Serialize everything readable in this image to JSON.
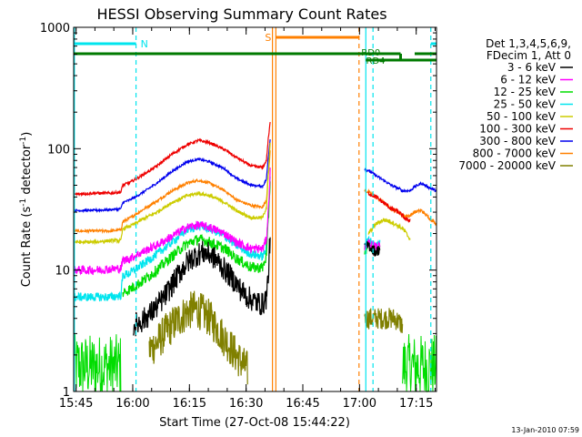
{
  "chart_data": {
    "type": "line",
    "title": "HESSI Observing Summary Count Rates",
    "xlabel": "Start Time (27-Oct-08 15:44:22)",
    "ylabel_main": "Count Rate (s",
    "ylabel_sup1": "-1",
    "ylabel_mid": " detector",
    "ylabel_sup2": "-1",
    "ylabel_end": ")",
    "footer": "13-Jan-2010 07:59",
    "yscale": "log",
    "ylim": [
      1,
      1000
    ],
    "xlim_minutes": [
      0,
      96
    ],
    "x_ticks": [
      {
        "m": 0.63,
        "label": "15:45"
      },
      {
        "m": 15.63,
        "label": "16:00"
      },
      {
        "m": 30.63,
        "label": "16:15"
      },
      {
        "m": 45.63,
        "label": "16:30"
      },
      {
        "m": 60.63,
        "label": "16:45"
      },
      {
        "m": 75.63,
        "label": "17:00"
      },
      {
        "m": 90.63,
        "label": "17:15"
      }
    ],
    "y_ticks": [
      {
        "v": 1,
        "label": "1"
      },
      {
        "v": 10,
        "label": "10"
      },
      {
        "v": 100,
        "label": "100"
      },
      {
        "v": 1000,
        "label": "1000"
      }
    ],
    "legend_header": [
      "Det 1,3,4,5,6,9,",
      "FDecim 1, Att 0"
    ],
    "series": [
      {
        "name": "3 - 6 keV",
        "color": "#000000",
        "points": [
          [
            15.8,
            3.5
          ],
          [
            18,
            3.8
          ],
          [
            20,
            4.3
          ],
          [
            22,
            5
          ],
          [
            24,
            6
          ],
          [
            26,
            7.5
          ],
          [
            28,
            9.5
          ],
          [
            30,
            11.5
          ],
          [
            32,
            13
          ],
          [
            34,
            14
          ],
          [
            36,
            13.5
          ],
          [
            38,
            12
          ],
          [
            40,
            10
          ],
          [
            42,
            8.5
          ],
          [
            44,
            7
          ],
          [
            46,
            6
          ],
          [
            48,
            5.5
          ],
          [
            50,
            5.2
          ],
          [
            51,
            6
          ],
          [
            51.5,
            9
          ],
          [
            52,
            20
          ]
        ],
        "noise": 0.22,
        "seg2": [
          [
            77,
            15
          ],
          [
            78,
            16
          ],
          [
            79,
            15
          ],
          [
            80,
            14
          ],
          [
            81,
            15
          ]
        ],
        "noise2": 0.1
      },
      {
        "name": "6 - 12 keV",
        "color": "#ff00ff",
        "points": [
          [
            0,
            10
          ],
          [
            5,
            10
          ],
          [
            10,
            10.2
          ],
          [
            12.5,
            10.3
          ],
          [
            13,
            12
          ],
          [
            15,
            12.5
          ],
          [
            18,
            14
          ],
          [
            22,
            16
          ],
          [
            26,
            19
          ],
          [
            30,
            22.5
          ],
          [
            33,
            23.5
          ],
          [
            36,
            22.5
          ],
          [
            40,
            20
          ],
          [
            43,
            17
          ],
          [
            47,
            15
          ],
          [
            50,
            15
          ],
          [
            51,
            18
          ],
          [
            51.5,
            30
          ],
          [
            52,
            65
          ]
        ],
        "noise": 0.08,
        "seg2": [
          [
            77,
            15.5
          ],
          [
            78,
            17
          ],
          [
            79,
            16
          ],
          [
            80,
            15.5
          ],
          [
            81,
            16
          ]
        ],
        "noise2": 0.08
      },
      {
        "name": "12 - 25 keV",
        "color": "#00dd00",
        "points": [
          [
            13,
            6.5
          ],
          [
            15,
            7
          ],
          [
            18,
            8
          ],
          [
            22,
            10
          ],
          [
            26,
            13
          ],
          [
            30,
            16.5
          ],
          [
            33,
            18
          ],
          [
            36,
            17
          ],
          [
            40,
            15
          ],
          [
            43,
            12.5
          ],
          [
            47,
            10.5
          ],
          [
            50,
            10.5
          ],
          [
            51,
            13
          ],
          [
            51.5,
            25
          ],
          [
            52,
            55
          ]
        ],
        "noise": 0.1,
        "seg2": [
          [
            77,
            14
          ],
          [
            78,
            16
          ],
          [
            79,
            15
          ],
          [
            80,
            14.5
          ],
          [
            81,
            15
          ]
        ],
        "noise2": 0.08
      },
      {
        "name": "25 - 50 keV",
        "color": "#00e5ee",
        "points": [
          [
            0,
            6
          ],
          [
            5,
            6
          ],
          [
            10,
            6
          ],
          [
            12.5,
            6.2
          ],
          [
            13,
            9
          ],
          [
            15,
            9.5
          ],
          [
            18,
            11
          ],
          [
            22,
            13.5
          ],
          [
            26,
            17
          ],
          [
            30,
            21.5
          ],
          [
            33,
            23
          ],
          [
            36,
            22
          ],
          [
            40,
            19
          ],
          [
            43,
            16
          ],
          [
            47,
            13.5
          ],
          [
            50,
            13
          ],
          [
            51,
            15
          ],
          [
            51.5,
            30
          ],
          [
            52,
            60
          ]
        ],
        "noise": 0.08,
        "seg2": [
          [
            77,
            16
          ],
          [
            78,
            18
          ],
          [
            79,
            17
          ],
          [
            80,
            16
          ],
          [
            81,
            17
          ]
        ],
        "noise2": 0.06
      },
      {
        "name": "50 - 100 keV",
        "color": "#cccc00",
        "points": [
          [
            0,
            17
          ],
          [
            5,
            17
          ],
          [
            10,
            17.5
          ],
          [
            12.5,
            17.5
          ],
          [
            13,
            22
          ],
          [
            15,
            23
          ],
          [
            18,
            26
          ],
          [
            22,
            30
          ],
          [
            26,
            36
          ],
          [
            30,
            41
          ],
          [
            33,
            43
          ],
          [
            36,
            41
          ],
          [
            40,
            36
          ],
          [
            43,
            31
          ],
          [
            47,
            27
          ],
          [
            50,
            27
          ],
          [
            51,
            33
          ],
          [
            51.5,
            60
          ],
          [
            52,
            110
          ]
        ],
        "noise": 0.03,
        "seg2": [
          [
            78,
            20
          ],
          [
            80,
            24
          ],
          [
            82,
            26
          ],
          [
            84,
            25
          ],
          [
            86,
            23
          ],
          [
            87,
            22
          ],
          [
            88,
            20
          ],
          [
            89,
            18
          ]
        ],
        "noise2": 0.04
      },
      {
        "name": "100 - 300 keV",
        "color": "#ee0000",
        "points": [
          [
            0,
            42
          ],
          [
            5,
            43
          ],
          [
            10,
            43
          ],
          [
            12.5,
            44
          ],
          [
            13,
            50
          ],
          [
            15,
            53
          ],
          [
            18,
            60
          ],
          [
            22,
            72
          ],
          [
            26,
            90
          ],
          [
            30,
            108
          ],
          [
            33,
            117
          ],
          [
            36,
            112
          ],
          [
            40,
            98
          ],
          [
            43,
            85
          ],
          [
            47,
            72
          ],
          [
            50,
            70
          ],
          [
            51,
            80
          ],
          [
            51.5,
            120
          ],
          [
            52,
            165
          ]
        ],
        "noise": 0.025,
        "seg2": [
          [
            78,
            43
          ],
          [
            80,
            40
          ],
          [
            82,
            36
          ],
          [
            84,
            32
          ],
          [
            86,
            30
          ],
          [
            87,
            28
          ],
          [
            88,
            26
          ],
          [
            89,
            26
          ]
        ],
        "noise2": 0.04
      },
      {
        "name": "300 - 800 keV",
        "color": "#0000ee",
        "points": [
          [
            0,
            31
          ],
          [
            5,
            31
          ],
          [
            10,
            31.5
          ],
          [
            12.5,
            32
          ],
          [
            13,
            36
          ],
          [
            15,
            38
          ],
          [
            18,
            43
          ],
          [
            22,
            52
          ],
          [
            26,
            65
          ],
          [
            30,
            78
          ],
          [
            33,
            82
          ],
          [
            36,
            78
          ],
          [
            40,
            68
          ],
          [
            43,
            57
          ],
          [
            47,
            50
          ],
          [
            50,
            49
          ],
          [
            51,
            56
          ],
          [
            51.5,
            85
          ],
          [
            52,
            120
          ]
        ],
        "noise": 0.02,
        "seg2": [
          [
            77,
            68
          ],
          [
            78,
            66
          ],
          [
            80,
            60
          ],
          [
            82,
            55
          ],
          [
            84,
            50
          ],
          [
            86,
            47
          ],
          [
            87,
            45
          ],
          [
            88,
            45
          ],
          [
            89,
            45
          ],
          [
            90,
            48
          ],
          [
            92,
            52
          ],
          [
            94,
            48
          ],
          [
            96,
            45
          ]
        ],
        "noise2": 0.025
      },
      {
        "name": "800 - 7000 keV",
        "color": "#ff8000",
        "points": [
          [
            0,
            21
          ],
          [
            5,
            21
          ],
          [
            10,
            21
          ],
          [
            12.5,
            21.5
          ],
          [
            13,
            25
          ],
          [
            15,
            27
          ],
          [
            18,
            31
          ],
          [
            22,
            37
          ],
          [
            26,
            45
          ],
          [
            30,
            52
          ],
          [
            33,
            55
          ],
          [
            36,
            52
          ],
          [
            40,
            45
          ],
          [
            43,
            38
          ],
          [
            47,
            34
          ],
          [
            50,
            33
          ],
          [
            51,
            38
          ],
          [
            51.5,
            60
          ],
          [
            52,
            95
          ]
        ],
        "noise": 0.025,
        "seg2": [
          [
            77,
            45
          ],
          [
            78,
            44
          ],
          [
            80,
            40
          ],
          [
            82,
            36
          ],
          [
            84,
            32
          ],
          [
            86,
            30
          ],
          [
            87,
            28
          ],
          [
            88,
            28
          ],
          [
            89,
            28
          ],
          [
            90,
            30
          ],
          [
            92,
            31
          ],
          [
            94,
            27
          ],
          [
            96,
            24
          ]
        ],
        "noise2": 0.03
      },
      {
        "name": "7000 - 20000 keV",
        "color": "#808000",
        "points": [
          [
            20,
            2.2
          ],
          [
            22,
            2.5
          ],
          [
            24,
            3
          ],
          [
            26,
            3.5
          ],
          [
            28,
            4
          ],
          [
            30,
            4.5
          ],
          [
            32,
            4.8
          ],
          [
            34,
            4.5
          ],
          [
            36,
            4
          ],
          [
            38,
            3.3
          ],
          [
            40,
            2.7
          ],
          [
            42,
            2.2
          ],
          [
            44,
            1.8
          ],
          [
            46,
            1.5
          ]
        ],
        "noise": 0.35,
        "seg2": [
          [
            77,
            4
          ],
          [
            79,
            4
          ],
          [
            81,
            4
          ],
          [
            83,
            4
          ],
          [
            85,
            4
          ],
          [
            87,
            3.5
          ]
        ],
        "noise2": 0.2
      }
    ],
    "saa_green_noise_ranges": [
      [
        0,
        12.5
      ],
      [
        87,
        96
      ]
    ],
    "markers": {
      "N_label": "N",
      "S_label": "S",
      "RD0_label": "RD0",
      "RD4_label": "RD4",
      "N_color": "#00e5ee",
      "S_color": "#ff8000",
      "RD_color": "#007a00",
      "N_intervals": [
        [
          0,
          16.5
        ],
        [
          94.5,
          96
        ]
      ],
      "S_interval": [
        53.5,
        75.5
      ],
      "RD0_interval": [
        77.3,
        96
      ],
      "RD4_interval": [
        0,
        86.5
      ],
      "vlines": [
        {
          "m": 0.2,
          "color": "#00e5ee",
          "dash": false
        },
        {
          "m": 16.5,
          "color": "#00e5ee",
          "dash": true
        },
        {
          "m": 52.6,
          "color": "#ff8000",
          "dash": false
        },
        {
          "m": 53.5,
          "color": "#ff8000",
          "dash": false
        },
        {
          "m": 75.5,
          "color": "#ff8000",
          "dash": true
        },
        {
          "m": 77.3,
          "color": "#00e5ee",
          "dash": false
        },
        {
          "m": 79.2,
          "color": "#00e5ee",
          "dash": true
        },
        {
          "m": 94.5,
          "color": "#00e5ee",
          "dash": true
        }
      ]
    }
  }
}
